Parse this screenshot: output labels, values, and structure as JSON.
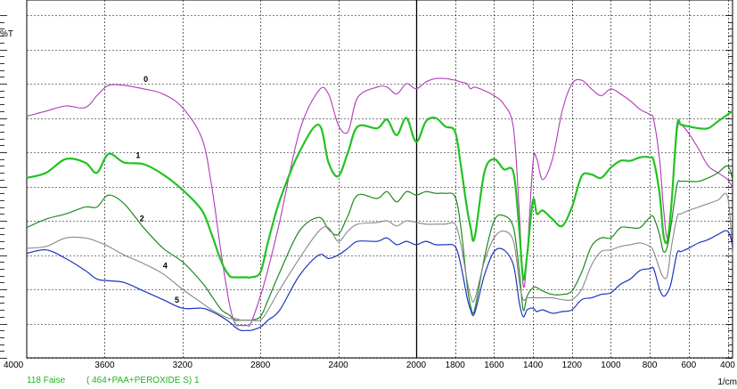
{
  "colors": {
    "trace_0": "#b03ab8",
    "trace_1": "#22c222",
    "trace_2": "#1c8a1c",
    "trace_4": "#888888",
    "trace_5": "#1a35c0",
    "footer_text": "#22b022",
    "grid": "#000000"
  },
  "footer": {
    "sample_id": "118 Faise",
    "sample_desc": "( 464+PAA+PEROXIDE S) 1"
  },
  "chart_data": {
    "type": "line",
    "title": "",
    "ylabel": "%T",
    "xlabel": "1/cm",
    "x_reversed": true,
    "xlim": [
      4000,
      375
    ],
    "ylim": [
      0,
      100
    ],
    "grid": true,
    "x_ticks": [
      4000,
      3600,
      3200,
      2800,
      2400,
      2000,
      1800,
      1600,
      1400,
      1200,
      1000,
      800,
      600,
      400
    ],
    "x_tick_labels": [
      "4000",
      "3600",
      "3200",
      "2800",
      "2400",
      "2000",
      "1800",
      "1600",
      "1400",
      "1200",
      "1000",
      "800",
      "600",
      "400"
    ],
    "x": [
      4000,
      3900,
      3800,
      3700,
      3640,
      3580,
      3500,
      3400,
      3300,
      3200,
      3100,
      3050,
      3000,
      2960,
      2930,
      2900,
      2870,
      2850,
      2800,
      2760,
      2700,
      2600,
      2500,
      2450,
      2400,
      2350,
      2300,
      2200,
      2150,
      2100,
      2050,
      2000,
      1950,
      1900,
      1850,
      1800,
      1770,
      1740,
      1720,
      1700,
      1650,
      1600,
      1550,
      1500,
      1470,
      1450,
      1430,
      1400,
      1380,
      1350,
      1300,
      1250,
      1200,
      1150,
      1100,
      1050,
      1000,
      950,
      900,
      850,
      800,
      780,
      750,
      730,
      710,
      690,
      660,
      640,
      600,
      550,
      500,
      450,
      400,
      375
    ],
    "series": [
      {
        "name": "0",
        "values": [
          70.5,
          72,
          73.5,
          73,
          76.5,
          79.5,
          79.5,
          78.5,
          77,
          73,
          64,
          50,
          30,
          16,
          10,
          9.5,
          9.5,
          10,
          18,
          26,
          40,
          66,
          78,
          77,
          68,
          66,
          76,
          79,
          79,
          77,
          80,
          78.5,
          80.5,
          81.5,
          81.5,
          81,
          80.5,
          80,
          78.5,
          79,
          78,
          76.5,
          74,
          67,
          42,
          21,
          30,
          57,
          58,
          52,
          58,
          72,
          80,
          81,
          78.5,
          76.5,
          78.5,
          77,
          75,
          72.5,
          71,
          69.5,
          58,
          44,
          35,
          45,
          66,
          68,
          65.5,
          61,
          56,
          54,
          52,
          49.5
        ]
      },
      {
        "name": "1",
        "values": [
          52.5,
          54,
          58,
          57,
          54,
          59.5,
          57,
          56.5,
          53.5,
          49,
          43,
          36,
          28,
          24,
          23.5,
          23.5,
          23.5,
          23.5,
          25,
          34,
          46,
          60,
          68,
          57,
          53,
          60,
          67.5,
          67,
          69.5,
          65,
          70,
          63,
          69,
          70,
          67.5,
          66,
          56,
          44,
          38,
          35,
          54,
          58,
          55,
          54,
          37,
          23,
          30,
          46,
          42,
          43,
          40.5,
          38.5,
          44,
          53,
          53.5,
          52.5,
          55.5,
          57.5,
          57.5,
          58.5,
          58.5,
          57.5,
          48,
          36,
          34,
          44,
          67.5,
          68,
          67.5,
          67,
          67,
          69,
          71,
          72
        ]
      },
      {
        "name": "2",
        "values": [
          38,
          40.5,
          42,
          44,
          44,
          47.5,
          45,
          38,
          32,
          28,
          22,
          18,
          14,
          12.5,
          11,
          11,
          11,
          11,
          12,
          17,
          25,
          37,
          41,
          37.5,
          36,
          41.5,
          47.5,
          46.5,
          48.5,
          45.5,
          48.5,
          47.5,
          48.5,
          48,
          48,
          47,
          38,
          22,
          15,
          14,
          29,
          40,
          41.5,
          38,
          25,
          14,
          18,
          20.5,
          20.5,
          19.5,
          18.5,
          18.5,
          19.5,
          25,
          32.5,
          35,
          35,
          38,
          38,
          38,
          41,
          41,
          36,
          31,
          32.5,
          39,
          50.5,
          51.5,
          51.5,
          51.5,
          52.5,
          54,
          56,
          52
        ]
      },
      {
        "name": "4",
        "values": [
          32,
          32.5,
          35,
          35,
          34,
          32.5,
          30,
          27.5,
          24.5,
          20,
          16,
          14,
          12.5,
          11.5,
          11.5,
          11,
          11,
          11,
          11,
          14,
          20,
          29,
          37,
          38,
          34,
          37,
          39,
          39.5,
          40,
          38.5,
          40,
          39.5,
          39,
          39,
          39,
          39,
          33,
          23,
          18,
          17,
          28,
          35,
          37,
          34,
          22,
          17,
          17.5,
          17.5,
          17.5,
          17.5,
          17.5,
          17,
          17,
          20,
          27,
          31,
          31.5,
          32.5,
          33,
          33.5,
          32.5,
          31,
          26,
          23.5,
          24,
          32,
          41,
          42,
          43,
          44,
          45,
          46,
          47,
          30
        ]
      },
      {
        "name": "5",
        "values": [
          30.5,
          31.5,
          29,
          25.5,
          23,
          22.5,
          22,
          19.5,
          17,
          14.5,
          14.5,
          13.5,
          12,
          10.5,
          9,
          8,
          8,
          8,
          9,
          11,
          14,
          24,
          30,
          29,
          30,
          32,
          34,
          34,
          35,
          33,
          34,
          33,
          34,
          33,
          33,
          32.5,
          27,
          18,
          14,
          13,
          24,
          31,
          31.5,
          27,
          16,
          12,
          14,
          14.5,
          13.5,
          14,
          13,
          13.5,
          14,
          17,
          17.5,
          18.5,
          19,
          21.5,
          23,
          25.5,
          26,
          26,
          20,
          18,
          19,
          22,
          30.5,
          31,
          32,
          33.5,
          34.5,
          36,
          37,
          33
        ]
      }
    ]
  }
}
